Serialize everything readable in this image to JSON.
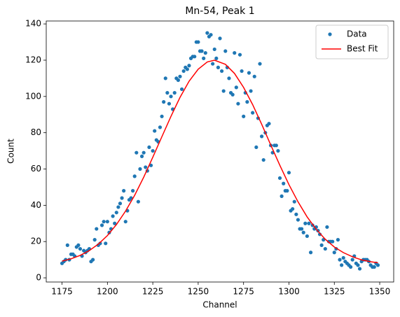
{
  "chart_data": {
    "type": "scatter",
    "title": "Mn-54, Peak 1",
    "x_label": "Channel",
    "y_label": "Count",
    "xlim": [
      1166.3,
      1357.7
    ],
    "ylim": [
      -2.3,
      141.6
    ],
    "xticks": [
      1175,
      1200,
      1225,
      1250,
      1275,
      1300,
      1325,
      1350
    ],
    "yticks": [
      0,
      20,
      40,
      60,
      80,
      100,
      120,
      140
    ],
    "legend": "upper right",
    "series": [
      {
        "name": "Data",
        "type": "scatter",
        "color": "#1f77b4",
        "x": [
          1175,
          1176,
          1177,
          1178,
          1179,
          1180,
          1181,
          1182,
          1183,
          1184,
          1185,
          1186,
          1187,
          1188,
          1189,
          1190,
          1191,
          1192,
          1193,
          1194,
          1195,
          1196,
          1197,
          1198,
          1199,
          1200,
          1201,
          1202,
          1203,
          1204,
          1205,
          1206,
          1207,
          1208,
          1209,
          1210,
          1211,
          1212,
          1213,
          1214,
          1215,
          1216,
          1217,
          1218,
          1219,
          1220,
          1221,
          1222,
          1223,
          1224,
          1225,
          1226,
          1227,
          1228,
          1229,
          1230,
          1231,
          1232,
          1233,
          1234,
          1235,
          1236,
          1237,
          1238,
          1239,
          1240,
          1241,
          1242,
          1243,
          1244,
          1245,
          1246,
          1247,
          1248,
          1249,
          1250,
          1251,
          1252,
          1253,
          1254,
          1255,
          1256,
          1257,
          1258,
          1259,
          1260,
          1261,
          1262,
          1263,
          1264,
          1265,
          1266,
          1267,
          1268,
          1269,
          1270,
          1271,
          1272,
          1273,
          1274,
          1275,
          1276,
          1277,
          1278,
          1279,
          1280,
          1281,
          1282,
          1283,
          1284,
          1285,
          1286,
          1287,
          1288,
          1289,
          1290,
          1291,
          1292,
          1293,
          1294,
          1295,
          1296,
          1297,
          1298,
          1299,
          1300,
          1301,
          1302,
          1303,
          1304,
          1305,
          1306,
          1307,
          1308,
          1309,
          1310,
          1311,
          1312,
          1313,
          1314,
          1315,
          1316,
          1317,
          1318,
          1319,
          1320,
          1321,
          1322,
          1323,
          1324,
          1325,
          1326,
          1327,
          1328,
          1329,
          1330,
          1331,
          1332,
          1333,
          1334,
          1335,
          1336,
          1337,
          1338,
          1339,
          1340,
          1341,
          1342,
          1343,
          1344,
          1345,
          1346,
          1347,
          1348,
          1349
        ],
        "values": [
          8,
          9,
          10,
          18,
          10,
          13,
          13,
          12,
          17,
          18,
          16,
          12,
          15,
          14,
          15,
          16,
          9,
          10,
          21,
          27,
          18,
          19,
          29,
          31,
          19,
          31,
          25,
          27,
          34,
          30,
          36,
          39,
          41,
          44,
          48,
          31,
          37,
          43,
          44,
          48,
          56,
          69,
          42,
          60,
          67,
          69,
          61,
          59,
          72,
          62,
          70,
          81,
          76,
          75,
          83,
          89,
          97,
          110,
          102,
          96,
          100,
          93,
          102,
          110,
          109,
          111,
          104,
          114,
          116,
          115,
          117,
          121,
          122,
          122,
          130,
          130,
          125,
          125,
          121,
          124,
          135,
          133,
          134,
          118,
          126,
          121,
          116,
          132,
          114,
          103,
          125,
          116,
          110,
          102,
          101,
          124,
          105,
          96,
          123,
          114,
          89,
          102,
          97,
          113,
          103,
          91,
          111,
          72,
          88,
          118,
          78,
          65,
          80,
          84,
          85,
          73,
          69,
          73,
          73,
          70,
          55,
          45,
          52,
          48,
          48,
          58,
          37,
          38,
          42,
          35,
          32,
          27,
          27,
          25,
          30,
          23,
          30,
          14,
          29,
          27,
          28,
          26,
          24,
          18,
          21,
          16,
          28,
          20,
          20,
          20,
          14,
          16,
          21,
          10,
          7,
          11,
          9,
          8,
          7,
          6,
          10,
          12,
          8,
          7,
          5,
          9,
          10,
          10,
          10,
          9,
          7,
          6,
          6,
          8,
          7
        ]
      },
      {
        "name": "Best Fit",
        "type": "line",
        "color": "#ff0000",
        "x": [
          1175,
          1180,
          1185,
          1190,
          1195,
          1200,
          1205,
          1210,
          1215,
          1220,
          1225,
          1230,
          1235,
          1240,
          1245,
          1250,
          1255,
          1259,
          1265,
          1270,
          1275,
          1280,
          1285,
          1290,
          1295,
          1300,
          1305,
          1310,
          1315,
          1320,
          1325,
          1330,
          1335,
          1340,
          1345,
          1349
        ],
        "values": [
          9.2,
          10.5,
          12.4,
          15.0,
          18.6,
          23.3,
          29.4,
          36.8,
          45.5,
          55.5,
          66.5,
          77.8,
          89.0,
          99.5,
          108.4,
          115.0,
          119.0,
          120.0,
          117.7,
          112.7,
          105.0,
          95.5,
          84.6,
          73.2,
          62.0,
          51.4,
          41.9,
          33.6,
          26.8,
          21.3,
          17.0,
          13.9,
          11.6,
          9.9,
          8.9,
          8.3
        ]
      }
    ]
  }
}
